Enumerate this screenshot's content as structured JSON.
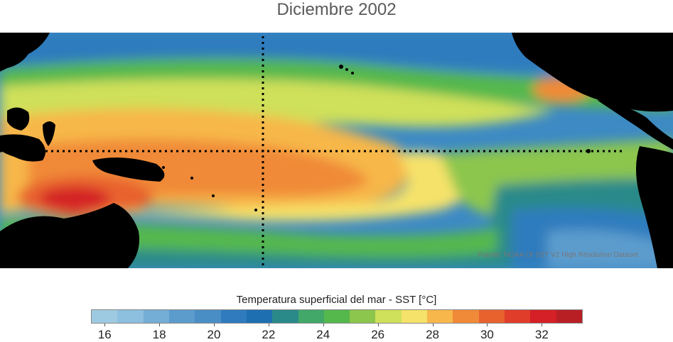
{
  "title": "Diciembre 2002",
  "source": "Fuente: NOAA OI SST V2 High Resolution Dataset",
  "colorbar": {
    "label": "Temperatura superficial del mar - SST  [°C]",
    "colors": [
      "#9ecae1",
      "#8dbfde",
      "#74add6",
      "#5b9ccd",
      "#4a8ec6",
      "#2f7bbd",
      "#1e6fb2",
      "#2a8a8a",
      "#41a86a",
      "#55b84d",
      "#8cc64d",
      "#cfe05a",
      "#f5e26a",
      "#f7b74a",
      "#f08a38",
      "#e8622e",
      "#e03d2a",
      "#d42026",
      "#b81f25"
    ],
    "ticks": [
      "16",
      "18",
      "20",
      "22",
      "24",
      "26",
      "28",
      "30",
      "32"
    ]
  },
  "chart_data": {
    "type": "heatmap",
    "title": "Diciembre 2002",
    "variable": "Temperatura superficial del mar - SST",
    "units": "°C",
    "color_range": [
      15.5,
      33.5
    ],
    "ticks": [
      16,
      18,
      20,
      22,
      24,
      26,
      28,
      30,
      32
    ],
    "source": "Fuente: NOAA OI SST V2 High Resolution Dataset"
  }
}
